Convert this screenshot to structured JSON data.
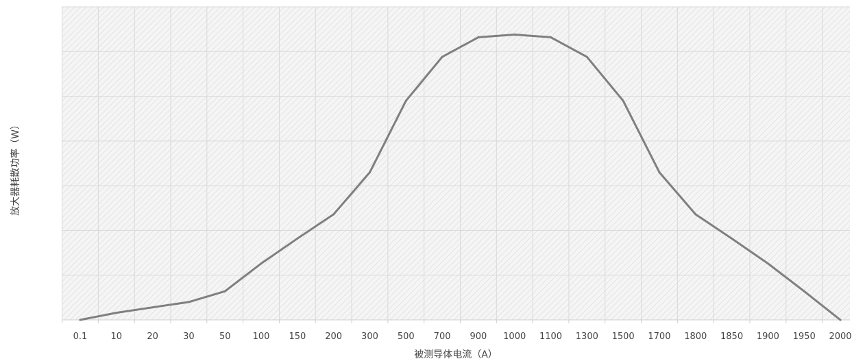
{
  "chart_data": {
    "type": "line",
    "title": "",
    "xlabel": "被测导体电流（A）",
    "ylabel": "放大器耗散功率（W）",
    "categories": [
      "0.1",
      "10",
      "20",
      "30",
      "50",
      "100",
      "150",
      "200",
      "300",
      "500",
      "700",
      "900",
      "1000",
      "1100",
      "1300",
      "1500",
      "1700",
      "1800",
      "1850",
      "1900",
      "1950",
      "2000"
    ],
    "series": [
      {
        "values": [
          0,
          0.8,
          1.4,
          2.0,
          3.2,
          6.3,
          9.1,
          11.8,
          16.5,
          24.5,
          29.4,
          31.6,
          31.9,
          31.6,
          29.4,
          24.5,
          16.5,
          11.8,
          9.1,
          6.3,
          3.2,
          0
        ]
      }
    ],
    "ylim": [
      0,
      35
    ],
    "ytick_step": 5,
    "y_tick_labels_shown": false,
    "grid": true,
    "legend": "none",
    "colors": {
      "line": "#7f7f7f",
      "grid": "#d9d9d9",
      "plot_background": "#f4f4f4",
      "hatch": "#e2e2e2",
      "text": "#444444"
    }
  }
}
